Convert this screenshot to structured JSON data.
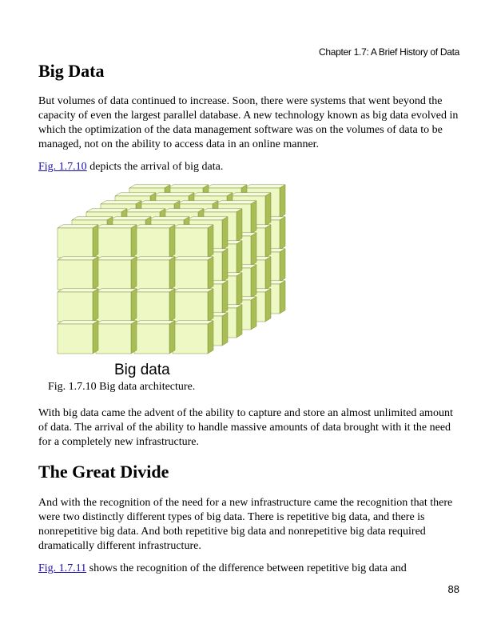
{
  "header": {
    "chapter": "Chapter 1.7: A Brief History of Data"
  },
  "section1": {
    "title": "Big Data",
    "para1": "But volumes of data continued to increase. Soon, there were systems that went beyond the capacity of even the largest parallel database. A new technology known as big data evolved in which the optimization of the data management software was on the volumes of data to be managed, not on the ability to access data in an online manner.",
    "fig_ref_link": "Fig. 1.7.10",
    "fig_ref_text": " depicts the arrival of big data.",
    "figure": {
      "label": "Big data",
      "caption": "Fig. 1.7.10 Big data architecture.",
      "colors": {
        "front": "#eef8c4",
        "top": "#f6fbe2",
        "side": "#a9bd55",
        "edge": "#7d8d3a"
      }
    },
    "para2": "With big data came the advent of the ability to capture and store an almost unlimited amount of data. The arrival of the ability to handle massive amounts of data brought with it the need for a completely new infrastructure."
  },
  "section2": {
    "title": "The Great Divide",
    "para1": "And with the recognition of the need for a new infrastructure came the recognition that there were two distinctly different types of big data. There is repetitive big data, and there is nonrepetitive big data. And both repetitive big data and nonrepetitive big data required dramatically different infrastructure.",
    "fig_ref_link": "Fig. 1.7.11",
    "fig_ref_text": " shows the recognition of the difference between repetitive big data and"
  },
  "footer": {
    "page_number": "88"
  }
}
